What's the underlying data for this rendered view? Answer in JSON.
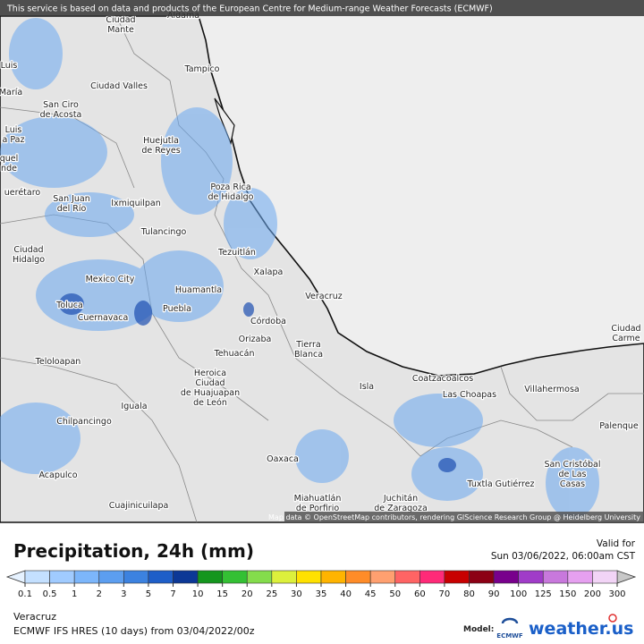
{
  "header": {
    "notice": "This service is based on data and products of the European Centre for Medium-range Weather Forecasts (ECMWF)"
  },
  "map": {
    "places": [
      "Aldama",
      [
        "Ciudad",
        "Mante"
      ],
      "Tampico",
      "Luis",
      "María",
      "Ciudad Valles",
      [
        "San Ciro",
        "de Acosta"
      ],
      [
        "Luis",
        "a Paz"
      ],
      [
        "Huejutla",
        "de Reyes"
      ],
      [
        "quel",
        "nde"
      ],
      [
        "Poza Rica",
        "de Hidalgo"
      ],
      "uerétaro",
      [
        "San Juan",
        "del Río"
      ],
      "Ixmiquilpan",
      "Tulancingo",
      "Tezuitlán",
      [
        "Ciudad",
        "Hidalgo"
      ],
      "Xalapa",
      "Mexico City",
      "Toluca",
      "Huamantla",
      "Veracruz",
      "Cuernavaca",
      "Puebla",
      "Córdoba",
      "Orizaba",
      "Tehuacán",
      [
        "Tierra",
        "Blanca"
      ],
      "Teloloapan",
      [
        "Heroica",
        "Ciudad",
        "de Huajuapan",
        "de León"
      ],
      "Iguala",
      "Isla",
      "Coatzacoalcos",
      "Las Choapas",
      "Villahermosa",
      [
        "Ciudad",
        "Carme"
      ],
      "Chilpancingo",
      "Palenque",
      "Acapulco",
      "Oaxaca",
      [
        "San Cristóbal",
        "de Las",
        "Casas"
      ],
      "Tuxtla Gutiérrez",
      "Cuajinicuilapa",
      [
        "Miahuatlán",
        "de Porfirio"
      ],
      [
        "Juchitán",
        "de Zaragoza"
      ]
    ],
    "attribution": "Map data © OpenStreetMap contributors, rendering GIScience Research Group @ Heidelberg University"
  },
  "footer": {
    "title": "Precipitation, 24h (mm)",
    "valid_label": "Valid for",
    "valid_time": "Sun 03/06/2022, 06:00am CST",
    "legend": {
      "labels": [
        0.1,
        0.5,
        1,
        2,
        3,
        5,
        7,
        10,
        15,
        20,
        25,
        30,
        35,
        40,
        45,
        50,
        60,
        70,
        80,
        90,
        100,
        125,
        150,
        200,
        300
      ],
      "colors": [
        "#c4e0ff",
        "#a0cbff",
        "#7cb6fb",
        "#5c9ef0",
        "#3c82e0",
        "#1e5ec8",
        "#0c3896",
        "#14961e",
        "#34c034",
        "#84dc4c",
        "#dcf03c",
        "#ffe100",
        "#ffb400",
        "#ff8c28",
        "#ffa070",
        "#ff6464",
        "#ff2a78",
        "#c80000",
        "#8c0014",
        "#78008c",
        "#a03cc8",
        "#c878dc",
        "#e6a0f0",
        "#f2d4f6",
        "#c8c8c8"
      ]
    },
    "region": "Veracruz",
    "model_run": "ECMWF IFS HRES (10 days) from 03/04/2022/00z",
    "model_label": "Model:",
    "model_logo": "ECMWF",
    "brand": "weather.us"
  }
}
